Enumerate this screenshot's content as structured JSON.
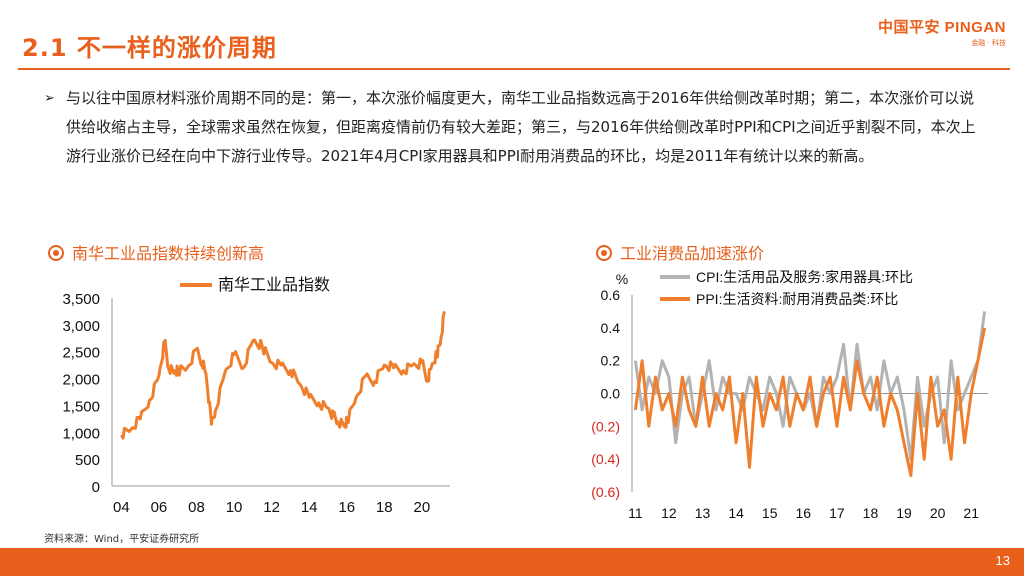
{
  "header": {
    "title": "2.1 不一样的涨价周期",
    "logo_main": "中国平安 PINGAN",
    "logo_sub": "金融 · 科技"
  },
  "bullet": {
    "arrow": "➢",
    "text": "与以往中国原材料涨价周期不同的是：第一，本次涨价幅度更大，南华工业品指数远高于2016年供给侧改革时期；第二，本次涨价可以说供给收缩占主导，全球需求虽然在恢复，但距离疫情前仍有较大差距；第三，与2016年供给侧改革时PPI和CPI之间近乎割裂不同，本次上游行业涨价已经在向中下游行业传导。2021年4月CPI家用器具和PPI耐用消费品的环比，均是2011年有统计以来的新高。"
  },
  "left_chart_title": "南华工业品指数持续创新高",
  "right_chart_title": "工业消费品加速涨价",
  "source": "资料来源：Wind，平安证券研究所",
  "page_number": "13",
  "colors": {
    "accent": "#e8601c",
    "orange_series": "#f07f2d",
    "gray_series": "#b3b3b3"
  },
  "chart_data": [
    {
      "type": "line",
      "series": [
        {
          "name": "南华工业品指数",
          "x": [
            2004.0,
            2004.5,
            2005.0,
            2005.5,
            2006.0,
            2006.3,
            2006.5,
            2006.8,
            2007.0,
            2007.5,
            2008.0,
            2008.3,
            2008.5,
            2008.8,
            2009.0,
            2009.5,
            2010.0,
            2010.5,
            2011.0,
            2011.5,
            2012.0,
            2012.5,
            2013.0,
            2013.5,
            2014.0,
            2014.5,
            2015.0,
            2015.3,
            2015.5,
            2015.9,
            2016.0,
            2016.5,
            2017.0,
            2017.5,
            2018.0,
            2018.5,
            2019.0,
            2019.5,
            2020.0,
            2020.3,
            2020.5,
            2020.8,
            2021.0,
            2021.2
          ],
          "y": [
            950,
            1050,
            1250,
            1600,
            2050,
            2700,
            2200,
            2100,
            2150,
            2200,
            2550,
            2300,
            2100,
            1150,
            1400,
            2100,
            2450,
            2200,
            2700,
            2600,
            2300,
            2250,
            2150,
            1900,
            1650,
            1550,
            1450,
            1300,
            1200,
            1100,
            1200,
            1650,
            2050,
            1950,
            2250,
            2200,
            2150,
            2250,
            2300,
            1950,
            2200,
            2450,
            2700,
            3250
          ]
        }
      ],
      "categories": [
        "04",
        "06",
        "08",
        "10",
        "12",
        "14",
        "16",
        "18",
        "20"
      ],
      "ylim": [
        0,
        3500
      ],
      "yticks": [
        "3,500",
        "3,000",
        "2,500",
        "2,000",
        "1,500",
        "1,000",
        "500",
        "0"
      ],
      "legend": "top-left"
    },
    {
      "type": "line",
      "ylabel": "%",
      "series": [
        {
          "name": "CPI:生活用品及服务:家用器具:环比",
          "x": [
            2011.0,
            2011.2,
            2011.4,
            2011.6,
            2011.8,
            2012.0,
            2012.2,
            2012.4,
            2012.6,
            2012.8,
            2013.0,
            2013.2,
            2013.4,
            2013.6,
            2013.8,
            2014.0,
            2014.2,
            2014.4,
            2014.6,
            2014.8,
            2015.0,
            2015.2,
            2015.4,
            2015.6,
            2015.8,
            2016.0,
            2016.2,
            2016.4,
            2016.6,
            2016.8,
            2017.0,
            2017.2,
            2017.4,
            2017.6,
            2017.8,
            2018.0,
            2018.2,
            2018.4,
            2018.6,
            2018.8,
            2019.0,
            2019.2,
            2019.4,
            2019.6,
            2019.8,
            2020.0,
            2020.2,
            2020.4,
            2020.6,
            2020.8,
            2021.0,
            2021.2,
            2021.4
          ],
          "y": [
            0.2,
            -0.1,
            0.1,
            0.0,
            0.2,
            0.1,
            -0.3,
            0.0,
            0.1,
            -0.2,
            0.0,
            0.2,
            -0.1,
            0.1,
            0.0,
            0.0,
            -0.1,
            0.1,
            0.0,
            -0.1,
            0.1,
            0.0,
            -0.2,
            0.1,
            0.0,
            -0.1,
            0.0,
            -0.2,
            0.1,
            0.0,
            0.1,
            0.3,
            -0.1,
            0.3,
            0.0,
            0.1,
            -0.1,
            0.2,
            0.0,
            0.1,
            -0.1,
            -0.4,
            0.1,
            -0.2,
            0.0,
            0.1,
            -0.3,
            0.2,
            -0.1,
            0.0,
            0.1,
            0.2,
            0.5
          ]
        },
        {
          "name": "PPI:生活资料:耐用消费品类:环比",
          "x": [
            2011.0,
            2011.2,
            2011.4,
            2011.6,
            2011.8,
            2012.0,
            2012.2,
            2012.4,
            2012.6,
            2012.8,
            2013.0,
            2013.2,
            2013.4,
            2013.6,
            2013.8,
            2014.0,
            2014.2,
            2014.4,
            2014.6,
            2014.8,
            2015.0,
            2015.2,
            2015.4,
            2015.6,
            2015.8,
            2016.0,
            2016.2,
            2016.4,
            2016.6,
            2016.8,
            2017.0,
            2017.2,
            2017.4,
            2017.6,
            2017.8,
            2018.0,
            2018.2,
            2018.4,
            2018.6,
            2018.8,
            2019.0,
            2019.2,
            2019.4,
            2019.6,
            2019.8,
            2020.0,
            2020.2,
            2020.4,
            2020.6,
            2020.8,
            2021.0,
            2021.2,
            2021.4
          ],
          "y": [
            -0.1,
            0.2,
            -0.2,
            0.1,
            -0.1,
            0.0,
            -0.2,
            0.1,
            -0.1,
            -0.2,
            0.1,
            -0.2,
            0.0,
            -0.1,
            0.1,
            -0.3,
            0.0,
            -0.45,
            0.1,
            -0.2,
            0.0,
            -0.1,
            0.1,
            -0.2,
            0.0,
            -0.1,
            0.1,
            -0.2,
            0.0,
            0.1,
            -0.2,
            0.1,
            -0.1,
            0.2,
            0.0,
            -0.1,
            0.1,
            -0.2,
            0.0,
            -0.1,
            -0.3,
            -0.5,
            0.0,
            -0.4,
            0.1,
            -0.2,
            -0.1,
            -0.4,
            0.1,
            -0.3,
            0.0,
            0.2,
            0.4
          ]
        }
      ],
      "categories": [
        "11",
        "12",
        "13",
        "14",
        "15",
        "16",
        "17",
        "18",
        "19",
        "20",
        "21"
      ],
      "ylim": [
        -0.6,
        0.6
      ],
      "yticks": [
        "0.6",
        "0.4",
        "0.2",
        "0.0",
        "(0.2)",
        "(0.4)",
        "(0.6)"
      ],
      "legend": "top"
    }
  ]
}
